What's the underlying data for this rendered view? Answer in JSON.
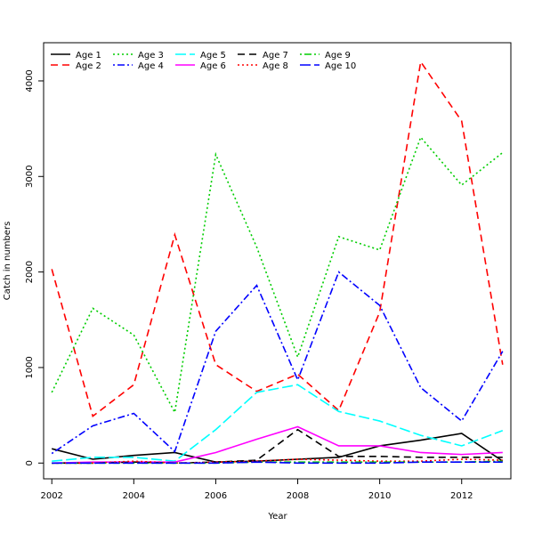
{
  "chart_data": {
    "type": "line",
    "title": "",
    "xlabel": "Year",
    "ylabel": "Catch in numbers",
    "x": [
      2002,
      2003,
      2004,
      2005,
      2006,
      2007,
      2008,
      2009,
      2010,
      2011,
      2012,
      2013
    ],
    "xlim": [
      2001.8,
      2013.2
    ],
    "ylim": [
      -165,
      4400
    ],
    "xticks": [
      2002,
      2004,
      2006,
      2008,
      2010,
      2012
    ],
    "yticks": [
      0,
      1000,
      2000,
      3000,
      4000
    ],
    "grid": false,
    "legend_position": "top-left",
    "series": [
      {
        "name": "Age 1",
        "color": "#000000",
        "dash": "solid",
        "values": [
          150,
          40,
          80,
          110,
          10,
          20,
          40,
          60,
          180,
          240,
          310,
          20
        ]
      },
      {
        "name": "Age 2",
        "color": "#ff0000",
        "dash": "dashed",
        "values": [
          2030,
          490,
          820,
          2390,
          1030,
          750,
          930,
          550,
          1580,
          4200,
          3580,
          1030
        ]
      },
      {
        "name": "Age 3",
        "color": "#00cd00",
        "dash": "dotted",
        "values": [
          740,
          1620,
          1340,
          530,
          3230,
          2260,
          1110,
          2370,
          2230,
          3410,
          2910,
          3250
        ]
      },
      {
        "name": "Age 4",
        "color": "#0000ff",
        "dash": "dotdash",
        "values": [
          100,
          390,
          520,
          120,
          1380,
          1860,
          870,
          2000,
          1650,
          790,
          440,
          1170
        ]
      },
      {
        "name": "Age 5",
        "color": "#00ffff",
        "dash": "longdash",
        "values": [
          20,
          60,
          60,
          20,
          350,
          740,
          820,
          540,
          440,
          290,
          180,
          340
        ]
      },
      {
        "name": "Age 6",
        "color": "#ff00ff",
        "dash": "solid",
        "values": [
          0,
          10,
          10,
          10,
          110,
          250,
          380,
          180,
          180,
          110,
          90,
          110
        ]
      },
      {
        "name": "Age 7",
        "color": "#000000",
        "dash": "dashed",
        "values": [
          0,
          0,
          10,
          0,
          10,
          30,
          350,
          70,
          70,
          60,
          60,
          60
        ]
      },
      {
        "name": "Age 8",
        "color": "#ff0000",
        "dash": "dotted",
        "values": [
          0,
          0,
          20,
          0,
          10,
          20,
          40,
          30,
          20,
          20,
          40,
          30
        ]
      },
      {
        "name": "Age 9",
        "color": "#00cd00",
        "dash": "dotdash",
        "values": [
          0,
          0,
          0,
          0,
          0,
          10,
          10,
          10,
          10,
          10,
          10,
          20
        ]
      },
      {
        "name": "Age 10",
        "color": "#0000ff",
        "dash": "longdash",
        "values": [
          0,
          0,
          0,
          0,
          0,
          10,
          0,
          0,
          0,
          10,
          10,
          10
        ]
      }
    ]
  }
}
